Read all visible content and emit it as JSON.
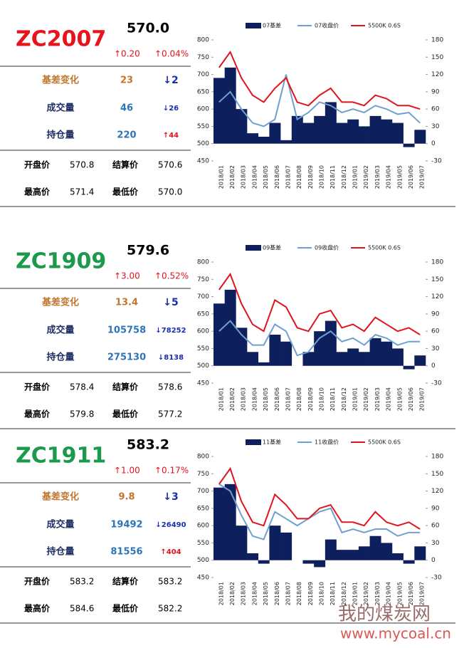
{
  "panels": [
    {
      "code": "ZC2007",
      "code_color": "#e8141b",
      "price": "570.0",
      "change": "↑0.20",
      "change_pct": "↑0.04%",
      "basis_change": {
        "label": "基差变化",
        "value": "23",
        "delta": "↓2"
      },
      "volume": {
        "label": "成交量",
        "value": "46",
        "delta": "↓26"
      },
      "open_interest": {
        "label": "持仓量",
        "value": "220",
        "delta": "↑44"
      },
      "open": {
        "label": "开盘价",
        "value": "570.8"
      },
      "settle": {
        "label": "结算价",
        "value": "570.6"
      },
      "high": {
        "label": "最高价",
        "value": "571.4"
      },
      "low": {
        "label": "最低价",
        "value": "570.0"
      }
    },
    {
      "code": "ZC1909",
      "code_color": "#1a9a4a",
      "price": "579.6",
      "change": "↑3.00",
      "change_pct": "↑0.52%",
      "basis_change": {
        "label": "基差变化",
        "value": "13.4",
        "delta": "↓5"
      },
      "volume": {
        "label": "成交量",
        "value": "105758",
        "delta": "↓78252"
      },
      "open_interest": {
        "label": "持仓量",
        "value": "275130",
        "delta": "↓8138"
      },
      "open": {
        "label": "开盘价",
        "value": "578.4"
      },
      "settle": {
        "label": "结算价",
        "value": "578.6"
      },
      "high": {
        "label": "最高价",
        "value": "579.8"
      },
      "low": {
        "label": "最低价",
        "value": "577.2"
      }
    },
    {
      "code": "ZC1911",
      "code_color": "#1a9a4a",
      "price": "583.2",
      "change": "↑1.00",
      "change_pct": "↑0.17%",
      "basis_change": {
        "label": "基差变化",
        "value": "9.8",
        "delta": "↓3"
      },
      "volume": {
        "label": "成交量",
        "value": "19492",
        "delta": "↓26490"
      },
      "open_interest": {
        "label": "持仓量",
        "value": "81556",
        "delta": "↑404"
      },
      "open": {
        "label": "开盘价",
        "value": "583.2"
      },
      "settle": {
        "label": "结算价",
        "value": "583.2"
      },
      "high": {
        "label": "最高价",
        "value": "584.6"
      },
      "low": {
        "label": "最低价",
        "value": "582.2"
      }
    }
  ],
  "chart_data": [
    {
      "type": "line",
      "categories": [
        "2018/01",
        "2018/02",
        "2018/03",
        "2018/04",
        "2018/05",
        "2018/06",
        "2018/07",
        "2018/08",
        "2018/09",
        "2018/10",
        "2018/11",
        "2018/12",
        "2019/01",
        "2019/02",
        "2019/03",
        "2019/04",
        "2019/05",
        "2019/06",
        "2019/07"
      ],
      "series": [
        {
          "name": "07基差",
          "type": "area",
          "axis": "y2",
          "color": "#0d1f5c",
          "values": [
            114,
            132,
            60,
            18,
            12,
            36,
            6,
            48,
            36,
            48,
            72,
            36,
            42,
            30,
            48,
            42,
            36,
            -6,
            24
          ]
        },
        {
          "name": "07收盘价",
          "color": "#6fa0cf",
          "values": [
            620,
            650,
            600,
            560,
            550,
            570,
            700,
            570,
            590,
            620,
            610,
            590,
            600,
            590,
            610,
            600,
            585,
            590,
            560
          ]
        },
        {
          "name": "5500K 0.6S",
          "color": "#e0141e",
          "values": [
            720,
            765,
            690,
            640,
            620,
            660,
            690,
            620,
            610,
            640,
            660,
            620,
            620,
            610,
            640,
            630,
            610,
            610,
            600
          ]
        }
      ],
      "ylim": [
        450,
        800
      ],
      "yticks": [
        450,
        500,
        550,
        600,
        650,
        700,
        750,
        800
      ],
      "y2lim": [
        -30,
        180
      ],
      "y2ticks": [
        -30,
        0,
        30,
        60,
        90,
        120,
        150,
        180
      ]
    },
    {
      "type": "line",
      "categories": [
        "2018/01",
        "2018/02",
        "2018/03",
        "2018/04",
        "2018/05",
        "2018/06",
        "2018/07",
        "2018/08",
        "2018/09",
        "2018/10",
        "2018/11",
        "2018/12",
        "2019/01",
        "2019/02",
        "2019/03",
        "2019/04",
        "2019/05",
        "2019/06",
        "2019/07"
      ],
      "series": [
        {
          "name": "09基差",
          "type": "area",
          "axis": "y2",
          "color": "#0d1f5c",
          "values": [
            108,
            132,
            66,
            24,
            6,
            54,
            42,
            0,
            24,
            60,
            78,
            24,
            30,
            24,
            48,
            42,
            30,
            -6,
            18
          ]
        },
        {
          "name": "09收盘价",
          "color": "#6fa0cf",
          "values": [
            600,
            630,
            590,
            560,
            560,
            620,
            600,
            530,
            540,
            580,
            600,
            570,
            580,
            560,
            590,
            580,
            560,
            570,
            570
          ]
        },
        {
          "name": "5500K 0.6S",
          "color": "#e0141e",
          "values": [
            720,
            765,
            680,
            620,
            600,
            690,
            670,
            610,
            600,
            650,
            660,
            610,
            620,
            600,
            640,
            620,
            600,
            610,
            590
          ]
        }
      ],
      "ylim": [
        450,
        800
      ],
      "yticks": [
        450,
        500,
        550,
        600,
        650,
        700,
        750,
        800
      ],
      "y2lim": [
        -30,
        180
      ],
      "y2ticks": [
        -30,
        0,
        30,
        60,
        90,
        120,
        150,
        180
      ]
    },
    {
      "type": "line",
      "categories": [
        "2018/01",
        "2018/02",
        "2018/03",
        "2018/04",
        "2018/05",
        "2018/06",
        "2018/07",
        "2018/08",
        "2018/09",
        "2018/10",
        "2018/11",
        "2018/12",
        "2019/01",
        "2019/02",
        "2019/03",
        "2019/04",
        "2019/05",
        "2019/06",
        "2019/07"
      ],
      "series": [
        {
          "name": "11基差",
          "type": "area",
          "axis": "y2",
          "color": "#0d1f5c",
          "values": [
            126,
            132,
            60,
            12,
            -6,
            60,
            48,
            0,
            -6,
            -12,
            36,
            18,
            18,
            24,
            42,
            30,
            12,
            -6,
            24
          ]
        },
        {
          "name": "11收盘价",
          "color": "#6fa0cf",
          "values": [
            720,
            700,
            630,
            570,
            560,
            640,
            620,
            600,
            620,
            640,
            650,
            580,
            590,
            580,
            590,
            590,
            570,
            580,
            580
          ]
        },
        {
          "name": "5500K 0.6S",
          "color": "#e0141e",
          "values": [
            720,
            765,
            670,
            610,
            600,
            690,
            660,
            620,
            620,
            650,
            660,
            610,
            610,
            600,
            640,
            610,
            600,
            610,
            590
          ]
        }
      ],
      "ylim": [
        450,
        800
      ],
      "yticks": [
        450,
        500,
        550,
        600,
        650,
        700,
        750,
        800
      ],
      "y2lim": [
        -30,
        180
      ],
      "y2ticks": [
        -30,
        0,
        30,
        60,
        90,
        120,
        150,
        180
      ]
    }
  ],
  "watermark": {
    "logo": "我的煤炭网",
    "url": "www.mycoal.cn"
  }
}
